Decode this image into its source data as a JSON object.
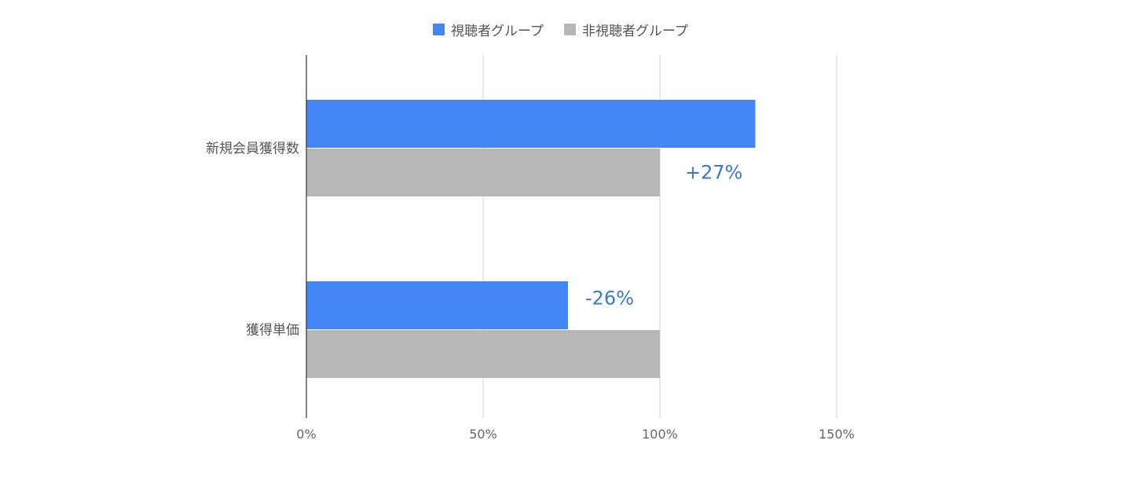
{
  "chart_data": {
    "type": "bar",
    "orientation": "horizontal",
    "categories": [
      "新規会員獲得数",
      "獲得単価"
    ],
    "series": [
      {
        "name": "視聴者グループ",
        "color": "#4285f4",
        "values": [
          127,
          74
        ]
      },
      {
        "name": "非視聴者グループ",
        "color": "#b7b7b7",
        "values": [
          100,
          100
        ]
      }
    ],
    "xlim": [
      0,
      150
    ],
    "xticks": [
      {
        "value": 0,
        "label": "0%"
      },
      {
        "value": 50,
        "label": "50%"
      },
      {
        "value": 100,
        "label": "100%"
      },
      {
        "value": 150,
        "label": "150%"
      }
    ],
    "annotations": [
      {
        "category": "新規会員獲得数",
        "text": "+27%"
      },
      {
        "category": "獲得単価",
        "text": "-26%"
      }
    ],
    "legend_position": "top",
    "grid": true
  }
}
